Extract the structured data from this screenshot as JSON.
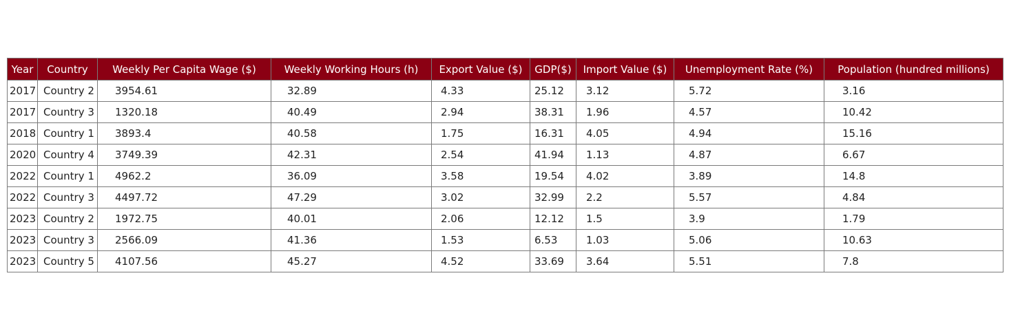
{
  "chart_data": {
    "type": "table",
    "columns": [
      "Year",
      "Country",
      "Weekly Per Capita Wage ($)",
      "Weekly Working Hours (h)",
      "Export Value ($)",
      "GDP($)",
      "Import Value ($)",
      "Unemployment Rate (%)",
      "Population (hundred millions)"
    ],
    "rows": [
      [
        "2017",
        "Country 2",
        "3954.61",
        "32.89",
        "4.33",
        "25.12",
        "3.12",
        "5.72",
        "3.16"
      ],
      [
        "2017",
        "Country 3",
        "1320.18",
        "40.49",
        "2.94",
        "38.31",
        "1.96",
        "4.57",
        "10.42"
      ],
      [
        "2018",
        "Country 1",
        "3893.4",
        "40.58",
        "1.75",
        "16.31",
        "4.05",
        "4.94",
        "15.16"
      ],
      [
        "2020",
        "Country 4",
        "3749.39",
        "42.31",
        "2.54",
        "41.94",
        "1.13",
        "4.87",
        "6.67"
      ],
      [
        "2022",
        "Country 1",
        "4962.2",
        "36.09",
        "3.58",
        "19.54",
        "4.02",
        "3.89",
        "14.8"
      ],
      [
        "2022",
        "Country 3",
        "4497.72",
        "47.29",
        "3.02",
        "32.99",
        "2.2",
        "5.57",
        "4.84"
      ],
      [
        "2023",
        "Country 2",
        "1972.75",
        "40.01",
        "2.06",
        "12.12",
        "1.5",
        "3.9",
        "1.79"
      ],
      [
        "2023",
        "Country 3",
        "2566.09",
        "41.36",
        "1.53",
        "6.53",
        "1.03",
        "5.06",
        "10.63"
      ],
      [
        "2023",
        "Country 5",
        "4107.56",
        "45.27",
        "4.52",
        "33.69",
        "3.64",
        "5.51",
        "7.8"
      ]
    ],
    "header_color": "#8b0013",
    "header_text_color": "#ffffff",
    "border_color": "#7a7a7a"
  }
}
